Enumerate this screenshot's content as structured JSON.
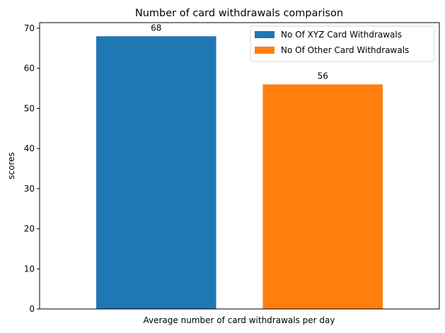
{
  "chart_data": {
    "type": "bar",
    "title": "Number of card withdrawals comparison",
    "xlabel": "Average number of card withdrawals per day",
    "ylabel": "scores",
    "ylim": [
      0,
      71.4
    ],
    "yticks": [
      0,
      10,
      20,
      30,
      40,
      50,
      60,
      70
    ],
    "grid": false,
    "legend_position": "top-right",
    "series": [
      {
        "name": "No Of XYZ Card Withdrawals",
        "value": 68,
        "label": "68",
        "color": "#1f77b4"
      },
      {
        "name": "No Of Other Card Withdrawals",
        "value": 56,
        "label": "56",
        "color": "#ff7f0e"
      }
    ]
  }
}
